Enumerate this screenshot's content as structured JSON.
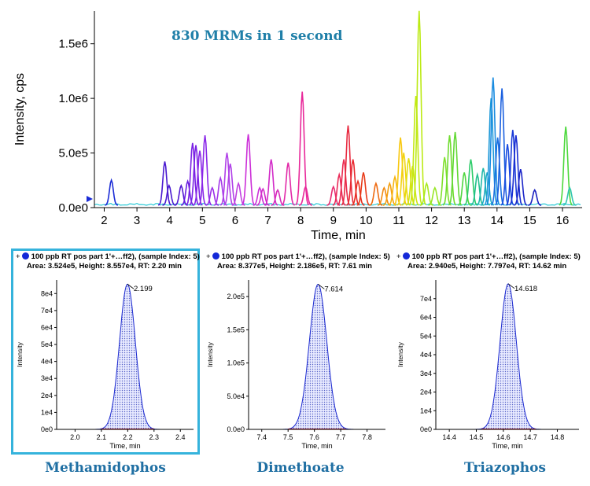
{
  "chart_data": [
    {
      "type": "line",
      "title": "",
      "annotation": "830 MRMs in 1 second",
      "xlabel": "Time, min",
      "ylabel": "Intensity, cps",
      "xlim": [
        1.7,
        16.6
      ],
      "ylim": [
        0,
        1800000
      ],
      "x_ticks": [
        2,
        3,
        4,
        5,
        6,
        7,
        8,
        9,
        10,
        11,
        12,
        13,
        14,
        15,
        16
      ],
      "x_tick_labels": [
        "2",
        "3",
        "4",
        "5",
        "6",
        "7",
        "8",
        "9",
        "10",
        "11",
        "12",
        "13",
        "14",
        "15",
        "16"
      ],
      "y_ticks": [
        0,
        500000,
        1000000,
        1500000
      ],
      "y_tick_labels": [
        "0.0e0",
        "5.0e5",
        "1.0e6",
        "1.5e6"
      ],
      "grid": false,
      "peaks": [
        {
          "x": 2.22,
          "y": 230000,
          "color": "#1a2bd6"
        },
        {
          "x": 3.85,
          "y": 400000,
          "color": "#4a1ad0"
        },
        {
          "x": 3.98,
          "y": 180000,
          "color": "#4a1ad0"
        },
        {
          "x": 4.35,
          "y": 180000,
          "color": "#5218d2"
        },
        {
          "x": 4.55,
          "y": 220000,
          "color": "#6a1fe0"
        },
        {
          "x": 4.7,
          "y": 570000,
          "color": "#7a22e4"
        },
        {
          "x": 4.8,
          "y": 550000,
          "color": "#7a22e4"
        },
        {
          "x": 4.92,
          "y": 500000,
          "color": "#8a28e8"
        },
        {
          "x": 5.08,
          "y": 640000,
          "color": "#8a28e8"
        },
        {
          "x": 5.3,
          "y": 160000,
          "color": "#9a2ee8"
        },
        {
          "x": 5.55,
          "y": 250000,
          "color": "#a53aea"
        },
        {
          "x": 5.75,
          "y": 480000,
          "color": "#b040e8"
        },
        {
          "x": 5.85,
          "y": 380000,
          "color": "#b040e8"
        },
        {
          "x": 6.1,
          "y": 200000,
          "color": "#c040e0"
        },
        {
          "x": 6.4,
          "y": 650000,
          "color": "#cc2fd8"
        },
        {
          "x": 6.75,
          "y": 160000,
          "color": "#cc2fd8"
        },
        {
          "x": 6.85,
          "y": 150000,
          "color": "#d22ac8"
        },
        {
          "x": 7.1,
          "y": 420000,
          "color": "#d22ac8"
        },
        {
          "x": 7.3,
          "y": 140000,
          "color": "#d82aba"
        },
        {
          "x": 7.62,
          "y": 390000,
          "color": "#e22aa8"
        },
        {
          "x": 8.05,
          "y": 1040000,
          "color": "#e8289a"
        },
        {
          "x": 8.15,
          "y": 170000,
          "color": "#e8289a"
        },
        {
          "x": 9.0,
          "y": 170000,
          "color": "#e82a70"
        },
        {
          "x": 9.18,
          "y": 280000,
          "color": "#ea2a58"
        },
        {
          "x": 9.32,
          "y": 420000,
          "color": "#ea2a50"
        },
        {
          "x": 9.45,
          "y": 730000,
          "color": "#e82a40"
        },
        {
          "x": 9.6,
          "y": 420000,
          "color": "#e82a30"
        },
        {
          "x": 9.75,
          "y": 220000,
          "color": "#e83020"
        },
        {
          "x": 9.92,
          "y": 300000,
          "color": "#e83a18"
        },
        {
          "x": 10.3,
          "y": 200000,
          "color": "#ee6a10"
        },
        {
          "x": 10.55,
          "y": 160000,
          "color": "#f28a10"
        },
        {
          "x": 10.72,
          "y": 200000,
          "color": "#f4a010"
        },
        {
          "x": 10.88,
          "y": 260000,
          "color": "#f6b410"
        },
        {
          "x": 11.05,
          "y": 620000,
          "color": "#f8c810"
        },
        {
          "x": 11.15,
          "y": 480000,
          "color": "#f0d410"
        },
        {
          "x": 11.3,
          "y": 430000,
          "color": "#e2de10"
        },
        {
          "x": 11.42,
          "y": 360000,
          "color": "#d0e410"
        },
        {
          "x": 11.52,
          "y": 1000000,
          "color": "#c4e812"
        },
        {
          "x": 11.62,
          "y": 1780000,
          "color": "#bcea14"
        },
        {
          "x": 11.85,
          "y": 200000,
          "color": "#a8e820"
        },
        {
          "x": 12.1,
          "y": 160000,
          "color": "#98e626"
        },
        {
          "x": 12.4,
          "y": 440000,
          "color": "#80e02c"
        },
        {
          "x": 12.55,
          "y": 640000,
          "color": "#70dc30"
        },
        {
          "x": 12.72,
          "y": 670000,
          "color": "#62d834"
        },
        {
          "x": 13.0,
          "y": 300000,
          "color": "#50d640"
        },
        {
          "x": 13.2,
          "y": 420000,
          "color": "#2ecc6a"
        },
        {
          "x": 13.4,
          "y": 280000,
          "color": "#22c08e"
        },
        {
          "x": 13.58,
          "y": 340000,
          "color": "#20b8aa"
        },
        {
          "x": 13.7,
          "y": 300000,
          "color": "#20a8c8"
        },
        {
          "x": 13.82,
          "y": 980000,
          "color": "#1c98d8"
        },
        {
          "x": 13.88,
          "y": 1170000,
          "color": "#1a8ce0"
        },
        {
          "x": 14.02,
          "y": 620000,
          "color": "#1a70e0"
        },
        {
          "x": 14.15,
          "y": 1070000,
          "color": "#1a60e0"
        },
        {
          "x": 14.32,
          "y": 560000,
          "color": "#1a4ce0"
        },
        {
          "x": 14.48,
          "y": 690000,
          "color": "#1a3ad8"
        },
        {
          "x": 14.58,
          "y": 640000,
          "color": "#1a2ed2"
        },
        {
          "x": 14.72,
          "y": 330000,
          "color": "#1a24c8"
        },
        {
          "x": 15.15,
          "y": 140000,
          "color": "#1a20c0"
        },
        {
          "x": 16.1,
          "y": 720000,
          "color": "#4cd83c"
        },
        {
          "x": 16.22,
          "y": 160000,
          "color": "#30c6b0"
        }
      ]
    },
    {
      "type": "area",
      "title": "100 ppb RT pos part 1'+…ff2), (sample Index: 5)",
      "info": "Area: 3.524e5, Height: 8.557e4, RT: 2.20 min",
      "compound": "Methamidophos",
      "selected": true,
      "xlabel": "Time, min",
      "ylabel": "Intensity",
      "xlim": [
        1.93,
        2.45
      ],
      "ylim": [
        0,
        88000
      ],
      "x_ticks": [
        2.0,
        2.1,
        2.2,
        2.3,
        2.4
      ],
      "x_tick_labels": [
        "2.0",
        "2.1",
        "2.2",
        "2.3",
        "2.4"
      ],
      "y_ticks": [
        0,
        10000,
        20000,
        30000,
        40000,
        50000,
        60000,
        70000,
        80000
      ],
      "y_tick_labels": [
        "0e0",
        "1e4",
        "2e4",
        "3e4",
        "4e4",
        "5e4",
        "6e4",
        "7e4",
        "8e4"
      ],
      "peak": {
        "rt": 2.199,
        "height": 85570,
        "sigma": 0.03,
        "start": 2.1,
        "end": 2.3
      },
      "peak_label": "2.199"
    },
    {
      "type": "area",
      "title": "100 ppb RT pos part 1'+…ff2), (sample Index: 5)",
      "info": "Area: 8.377e5, Height: 2.186e5, RT: 7.61 min",
      "compound": "Dimethoate",
      "selected": false,
      "xlabel": "Time, min",
      "ylabel": "Intensity",
      "xlim": [
        7.35,
        7.87
      ],
      "ylim": [
        0,
        225000
      ],
      "x_ticks": [
        7.4,
        7.5,
        7.6,
        7.7,
        7.8
      ],
      "x_tick_labels": [
        "7.4",
        "7.5",
        "7.6",
        "7.7",
        "7.8"
      ],
      "y_ticks": [
        0,
        50000,
        100000,
        150000,
        200000
      ],
      "y_tick_labels": [
        "0.0e0",
        "5.0e4",
        "1.0e5",
        "1.5e5",
        "2.0e5"
      ],
      "peak": {
        "rt": 7.614,
        "height": 218600,
        "sigma": 0.033,
        "start": 7.5,
        "end": 7.72
      },
      "peak_label": "7.614"
    },
    {
      "type": "area",
      "title": "100 ppb RT pos part 1'+…ff2), (sample Index: 5)",
      "info": "Area: 2.940e5, Height: 7.797e4, RT: 14.62 min",
      "compound": "Triazophos",
      "selected": false,
      "xlabel": "Time, min",
      "ylabel": "Intensity",
      "xlim": [
        14.35,
        14.88
      ],
      "ylim": [
        0,
        80000
      ],
      "x_ticks": [
        14.4,
        14.5,
        14.6,
        14.7,
        14.8
      ],
      "x_tick_labels": [
        "14.4",
        "14.5",
        "14.6",
        "14.7",
        "14.8"
      ],
      "y_ticks": [
        0,
        10000,
        20000,
        30000,
        40000,
        50000,
        60000,
        70000
      ],
      "y_tick_labels": [
        "0e0",
        "1e4",
        "2e4",
        "3e4",
        "4e4",
        "5e4",
        "6e4",
        "7e4"
      ],
      "peak": {
        "rt": 14.618,
        "height": 77970,
        "sigma": 0.03,
        "start": 14.52,
        "end": 14.72
      },
      "peak_label": "14.618"
    }
  ]
}
